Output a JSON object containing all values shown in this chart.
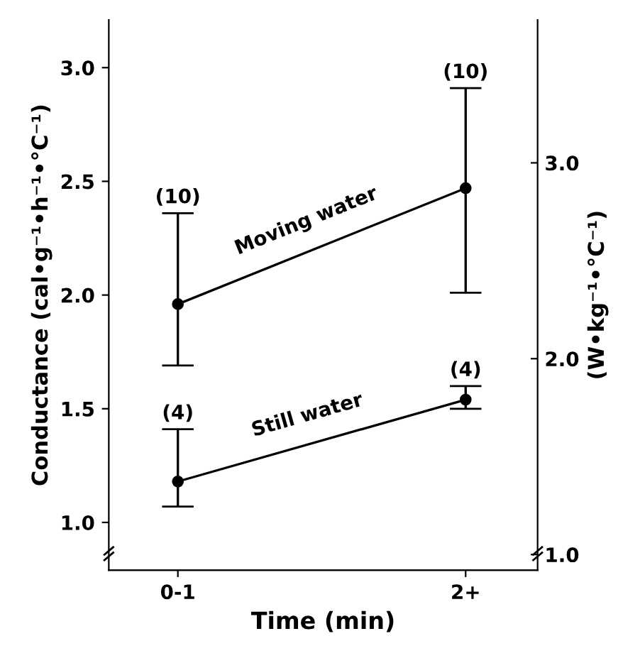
{
  "chart_data": {
    "type": "line",
    "xlabel": "Time (min)",
    "ylabel": "Conductance (cal•g⁻¹•h⁻¹•°C⁻¹)",
    "y2label": "(W•kg⁻¹•°C⁻¹)",
    "categories": [
      "0-1",
      "2+"
    ],
    "series": [
      {
        "name": "Moving water",
        "color": "#000000",
        "values": [
          1.96,
          2.47
        ],
        "errors": [
          [
            1.69,
            2.36
          ],
          [
            2.01,
            2.91
          ]
        ]
      },
      {
        "name": "Still water",
        "color": "#000000",
        "values": [
          1.18,
          1.54
        ],
        "errors": [
          [
            1.07,
            1.41
          ],
          [
            1.5,
            1.6
          ]
        ]
      }
    ],
    "ylim": [
      0.79,
      3.21
    ],
    "yticks": [
      {
        "value": 1.0,
        "label": "1.0"
      },
      1.5,
      {
        "value": 2.0,
        "label": "2.0"
      },
      2.5,
      {
        "value": 3.0,
        "label": "3.0"
      }
    ],
    "y2lim": [
      0.92,
      3.73
    ],
    "y2ticks": [
      {
        "value": 1.0,
        "label": "1.0"
      },
      {
        "value": 2.0,
        "label": "2.0"
      },
      {
        "value": 3.0,
        "label": "3.0"
      }
    ],
    "annotations": [
      "(10)",
      "(10)",
      "(4)",
      "(4)"
    ],
    "marker": "circle",
    "line_style": "solid",
    "grid": false
  }
}
